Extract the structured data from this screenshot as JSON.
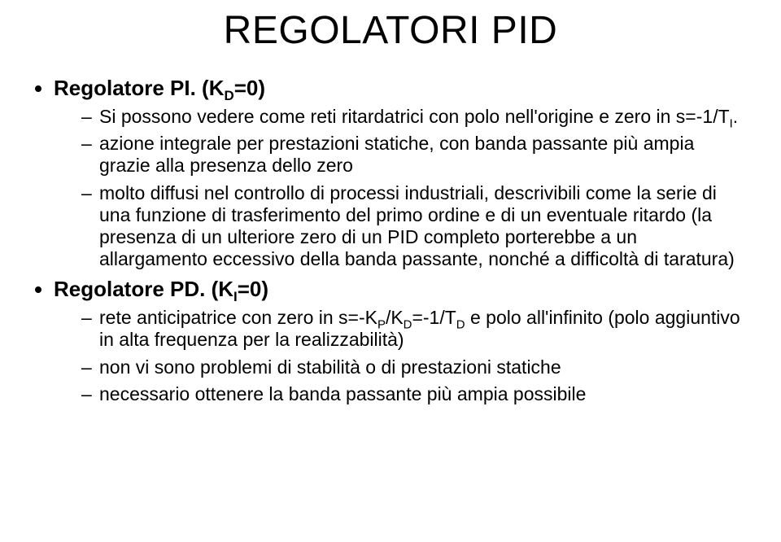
{
  "title": "REGOLATORI PID",
  "items": [
    {
      "heading_prefix": "Regolatore PI.",
      "heading_suffix_html": " (K<sub>D</sub>=0)",
      "subs": [
        "Si possono vedere come reti ritardatrici con polo nell'origine e zero in s=-1/T<sub>I</sub>.",
        "azione integrale per prestazioni statiche, con banda passante più ampia grazie alla presenza dello zero",
        "molto diffusi nel controllo di processi industriali, descrivibili come la serie di una funzione di trasferimento del primo ordine e di un eventuale ritardo (la presenza di un ulteriore zero di un PID completo porterebbe a un allargamento eccessivo della banda passante, nonché a difficoltà di taratura)"
      ]
    },
    {
      "heading_prefix": "Regolatore PD.",
      "heading_suffix_html": " (K<sub>I</sub>=0)",
      "subs": [
        "rete anticipatrice con zero in s=-K<sub>P</sub>/K<sub>D</sub>=-1/T<sub>D</sub> e polo all'infinito (polo aggiuntivo in alta frequenza per la realizzabilità)",
        "non vi sono problemi di stabilità o di prestazioni statiche",
        "necessario ottenere la banda passante più ampia possibile"
      ]
    }
  ]
}
